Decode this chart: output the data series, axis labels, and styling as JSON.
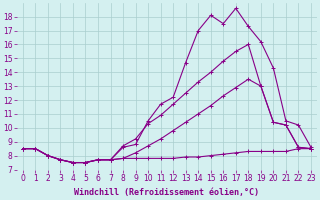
{
  "background_color": "#d4f0f0",
  "line_color": "#880088",
  "grid_color": "#aacece",
  "xlabel": "Windchill (Refroidissement éolien,°C)",
  "ylabel_ticks": [
    7,
    8,
    9,
    10,
    11,
    12,
    13,
    14,
    15,
    16,
    17,
    18
  ],
  "xlabel_ticks": [
    0,
    1,
    2,
    3,
    4,
    5,
    6,
    7,
    8,
    9,
    10,
    11,
    12,
    13,
    14,
    15,
    16,
    17,
    18,
    19,
    20,
    21,
    22,
    23
  ],
  "xlim": [
    -0.5,
    23.5
  ],
  "ylim": [
    7,
    19
  ],
  "line1_x": [
    0,
    1,
    2,
    3,
    4,
    5,
    6,
    7,
    8,
    9,
    10,
    11,
    12,
    13,
    14,
    15,
    16,
    17,
    18,
    19,
    20,
    21,
    22,
    23
  ],
  "line1_y": [
    8.5,
    8.5,
    8.0,
    7.7,
    7.5,
    7.5,
    7.7,
    7.7,
    8.6,
    8.8,
    10.5,
    11.7,
    12.2,
    14.7,
    17.0,
    18.1,
    17.5,
    18.6,
    17.3,
    16.2,
    14.3,
    10.5,
    10.2,
    8.6
  ],
  "line2_x": [
    0,
    1,
    2,
    3,
    4,
    5,
    6,
    7,
    8,
    9,
    10,
    11,
    12,
    13,
    14,
    15,
    16,
    17,
    18,
    19,
    20,
    21,
    22,
    23
  ],
  "line2_y": [
    8.5,
    8.5,
    8.0,
    7.7,
    7.5,
    7.5,
    7.7,
    7.7,
    8.7,
    9.2,
    10.3,
    10.9,
    11.7,
    12.5,
    13.3,
    14.0,
    14.8,
    15.5,
    16.0,
    13.0,
    10.4,
    10.2,
    8.6,
    8.5
  ],
  "line3_x": [
    0,
    1,
    2,
    3,
    4,
    5,
    6,
    7,
    8,
    9,
    10,
    11,
    12,
    13,
    14,
    15,
    16,
    17,
    18,
    19,
    20,
    21,
    22,
    23
  ],
  "line3_y": [
    8.5,
    8.5,
    8.0,
    7.7,
    7.5,
    7.5,
    7.7,
    7.7,
    7.8,
    8.2,
    8.7,
    9.2,
    9.8,
    10.4,
    11.0,
    11.6,
    12.3,
    12.9,
    13.5,
    13.0,
    10.4,
    10.2,
    8.6,
    8.5
  ],
  "line4_x": [
    0,
    1,
    2,
    3,
    4,
    5,
    6,
    7,
    8,
    9,
    10,
    11,
    12,
    13,
    14,
    15,
    16,
    17,
    18,
    19,
    20,
    21,
    22,
    23
  ],
  "line4_y": [
    8.5,
    8.5,
    8.0,
    7.7,
    7.5,
    7.5,
    7.7,
    7.7,
    7.8,
    7.8,
    7.8,
    7.8,
    7.8,
    7.9,
    7.9,
    8.0,
    8.1,
    8.2,
    8.3,
    8.3,
    8.3,
    8.3,
    8.5,
    8.5
  ],
  "marker": "+",
  "markersize": 3,
  "linewidth": 0.8,
  "tick_fontsize": 5.5,
  "xlabel_fontsize": 6.0
}
